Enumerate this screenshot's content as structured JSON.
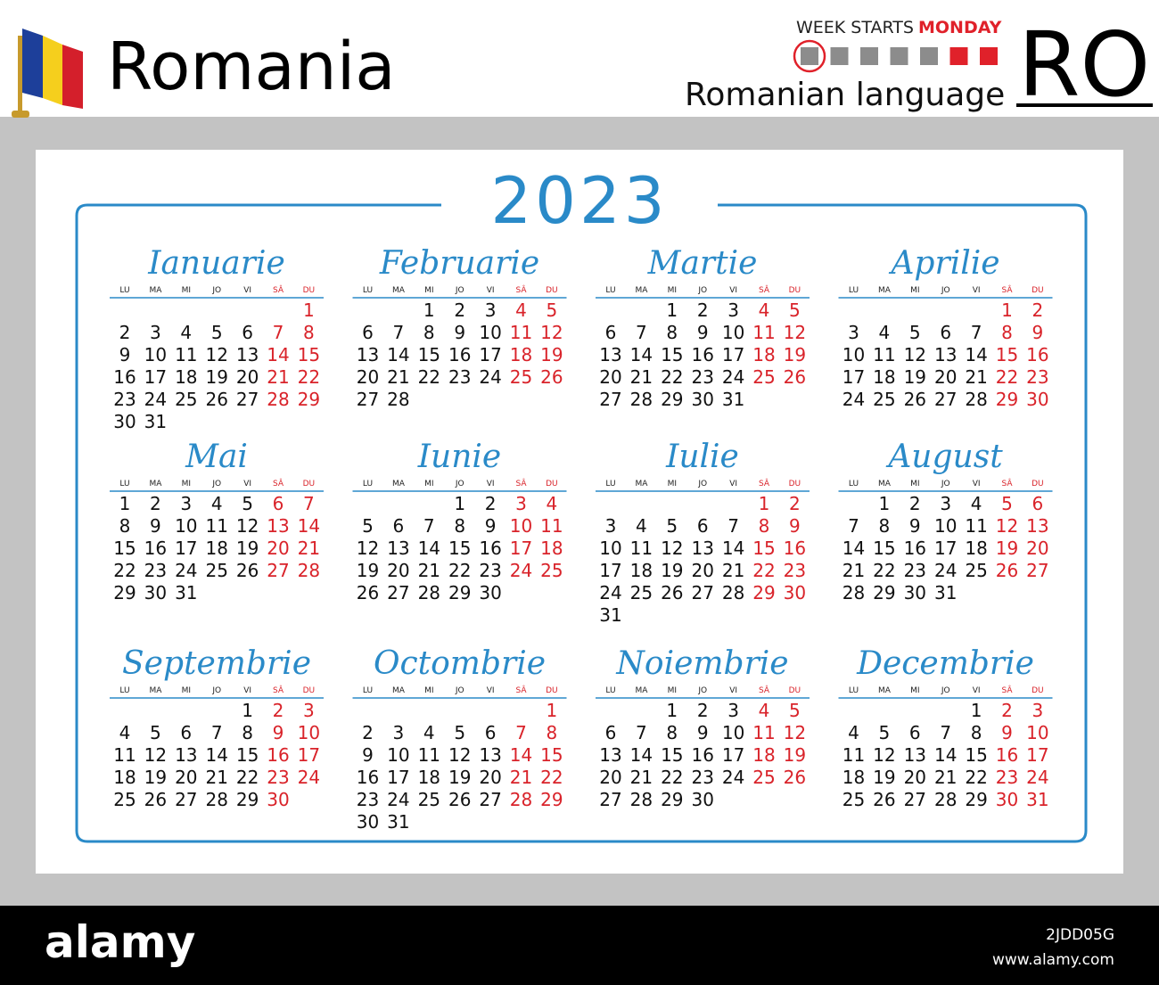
{
  "header": {
    "country": "Romania",
    "week_starts_label": "WEEK STARTS",
    "week_starts_day": "MONDAY",
    "language": "Romanian language",
    "code": "RO"
  },
  "calendar": {
    "year": "2023",
    "weekdays": [
      "LU",
      "MA",
      "MI",
      "JO",
      "VI",
      "SÂ",
      "DU"
    ],
    "months": [
      {
        "name": "Ianuarie",
        "weeks": [
          [
            null,
            null,
            null,
            null,
            null,
            null,
            1
          ],
          [
            2,
            3,
            4,
            5,
            6,
            7,
            8
          ],
          [
            9,
            10,
            11,
            12,
            13,
            14,
            15
          ],
          [
            16,
            17,
            18,
            19,
            20,
            21,
            22
          ],
          [
            23,
            24,
            25,
            26,
            27,
            28,
            29
          ],
          [
            30,
            31
          ]
        ]
      },
      {
        "name": "Februarie",
        "weeks": [
          [
            null,
            null,
            1,
            2,
            3,
            4,
            5
          ],
          [
            6,
            7,
            8,
            9,
            10,
            11,
            12
          ],
          [
            13,
            14,
            15,
            16,
            17,
            18,
            19
          ],
          [
            20,
            21,
            22,
            23,
            24,
            25,
            26
          ],
          [
            27,
            28
          ]
        ]
      },
      {
        "name": "Martie",
        "weeks": [
          [
            null,
            null,
            1,
            2,
            3,
            4,
            5
          ],
          [
            6,
            7,
            8,
            9,
            10,
            11,
            12
          ],
          [
            13,
            14,
            15,
            16,
            17,
            18,
            19
          ],
          [
            20,
            21,
            22,
            23,
            24,
            25,
            26
          ],
          [
            27,
            28,
            29,
            30,
            31
          ]
        ]
      },
      {
        "name": "Aprilie",
        "weeks": [
          [
            null,
            null,
            null,
            null,
            null,
            1,
            2
          ],
          [
            3,
            4,
            5,
            6,
            7,
            8,
            9
          ],
          [
            10,
            11,
            12,
            13,
            14,
            15,
            16
          ],
          [
            17,
            18,
            19,
            20,
            21,
            22,
            23
          ],
          [
            24,
            25,
            26,
            27,
            28,
            29,
            30
          ]
        ]
      },
      {
        "name": "Mai",
        "weeks": [
          [
            1,
            2,
            3,
            4,
            5,
            6,
            7
          ],
          [
            8,
            9,
            10,
            11,
            12,
            13,
            14
          ],
          [
            15,
            16,
            17,
            18,
            19,
            20,
            21
          ],
          [
            22,
            23,
            24,
            25,
            26,
            27,
            28
          ],
          [
            29,
            30,
            31
          ]
        ]
      },
      {
        "name": "Iunie",
        "weeks": [
          [
            null,
            null,
            null,
            1,
            2,
            3,
            4
          ],
          [
            5,
            6,
            7,
            8,
            9,
            10,
            11
          ],
          [
            12,
            13,
            14,
            15,
            16,
            17,
            18
          ],
          [
            19,
            20,
            21,
            22,
            23,
            24,
            25
          ],
          [
            26,
            27,
            28,
            29,
            30
          ]
        ]
      },
      {
        "name": "Iulie",
        "weeks": [
          [
            null,
            null,
            null,
            null,
            null,
            1,
            2
          ],
          [
            3,
            4,
            5,
            6,
            7,
            8,
            9
          ],
          [
            10,
            11,
            12,
            13,
            14,
            15,
            16
          ],
          [
            17,
            18,
            19,
            20,
            21,
            22,
            23
          ],
          [
            24,
            25,
            26,
            27,
            28,
            29,
            30
          ],
          [
            31
          ]
        ]
      },
      {
        "name": "August",
        "weeks": [
          [
            null,
            1,
            2,
            3,
            4,
            5,
            6
          ],
          [
            7,
            8,
            9,
            10,
            11,
            12,
            13
          ],
          [
            14,
            15,
            16,
            17,
            18,
            19,
            20
          ],
          [
            21,
            22,
            23,
            24,
            25,
            26,
            27
          ],
          [
            28,
            29,
            30,
            31
          ]
        ]
      },
      {
        "name": "Septembrie",
        "weeks": [
          [
            null,
            null,
            null,
            null,
            1,
            2,
            3
          ],
          [
            4,
            5,
            6,
            7,
            8,
            9,
            10
          ],
          [
            11,
            12,
            13,
            14,
            15,
            16,
            17
          ],
          [
            18,
            19,
            20,
            21,
            22,
            23,
            24
          ],
          [
            25,
            26,
            27,
            28,
            29,
            30
          ]
        ]
      },
      {
        "name": "Octombrie",
        "weeks": [
          [
            null,
            null,
            null,
            null,
            null,
            null,
            1
          ],
          [
            2,
            3,
            4,
            5,
            6,
            7,
            8
          ],
          [
            9,
            10,
            11,
            12,
            13,
            14,
            15
          ],
          [
            16,
            17,
            18,
            19,
            20,
            21,
            22
          ],
          [
            23,
            24,
            25,
            26,
            27,
            28,
            29
          ],
          [
            30,
            31
          ]
        ]
      },
      {
        "name": "Noiembrie",
        "weeks": [
          [
            null,
            null,
            1,
            2,
            3,
            4,
            5
          ],
          [
            6,
            7,
            8,
            9,
            10,
            11,
            12
          ],
          [
            13,
            14,
            15,
            16,
            17,
            18,
            19
          ],
          [
            20,
            21,
            22,
            23,
            24,
            25,
            26
          ],
          [
            27,
            28,
            29,
            30
          ]
        ]
      },
      {
        "name": "Decembrie",
        "weeks": [
          [
            null,
            null,
            null,
            null,
            1,
            2,
            3
          ],
          [
            4,
            5,
            6,
            7,
            8,
            9,
            10
          ],
          [
            11,
            12,
            13,
            14,
            15,
            16,
            17
          ],
          [
            18,
            19,
            20,
            21,
            22,
            23,
            24
          ],
          [
            25,
            26,
            27,
            28,
            29,
            30,
            31
          ]
        ]
      }
    ]
  },
  "footer": {
    "brand": "alamy",
    "image_id": "2JDD05G",
    "url": "www.alamy.com"
  }
}
